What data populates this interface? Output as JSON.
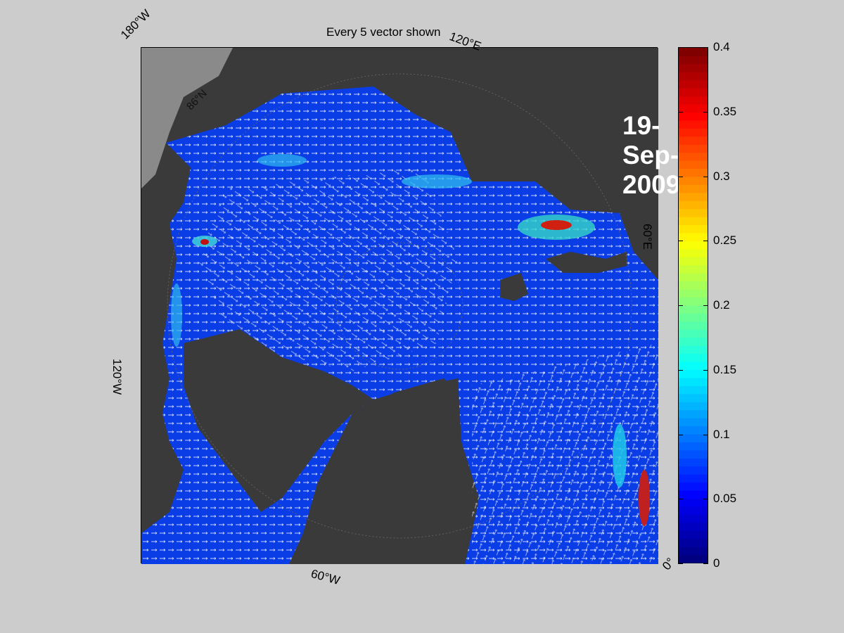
{
  "figure": {
    "title": "Every 5 vector shown",
    "date": "19-Sep-2009"
  },
  "map": {
    "type": "polar-stereographic sea-ice drift speed map",
    "longitude_labels": [
      "180°W",
      "120°E",
      "60°E",
      "0°",
      "60°W",
      "120°W"
    ],
    "latitude_labels": [
      "86°N"
    ],
    "land_color": "#3a3a3a",
    "ice_edge_color": "#8a8a8a",
    "vector_color": "#ffffff"
  },
  "colorbar": {
    "colormap": "jet",
    "min": 0,
    "max": 0.4,
    "tick_labels": [
      "0",
      "0.05",
      "0.1",
      "0.15",
      "0.2",
      "0.25",
      "0.3",
      "0.35",
      "0.4"
    ],
    "tick_values": [
      0,
      0.05,
      0.1,
      0.15,
      0.2,
      0.25,
      0.3,
      0.35,
      0.4
    ]
  }
}
